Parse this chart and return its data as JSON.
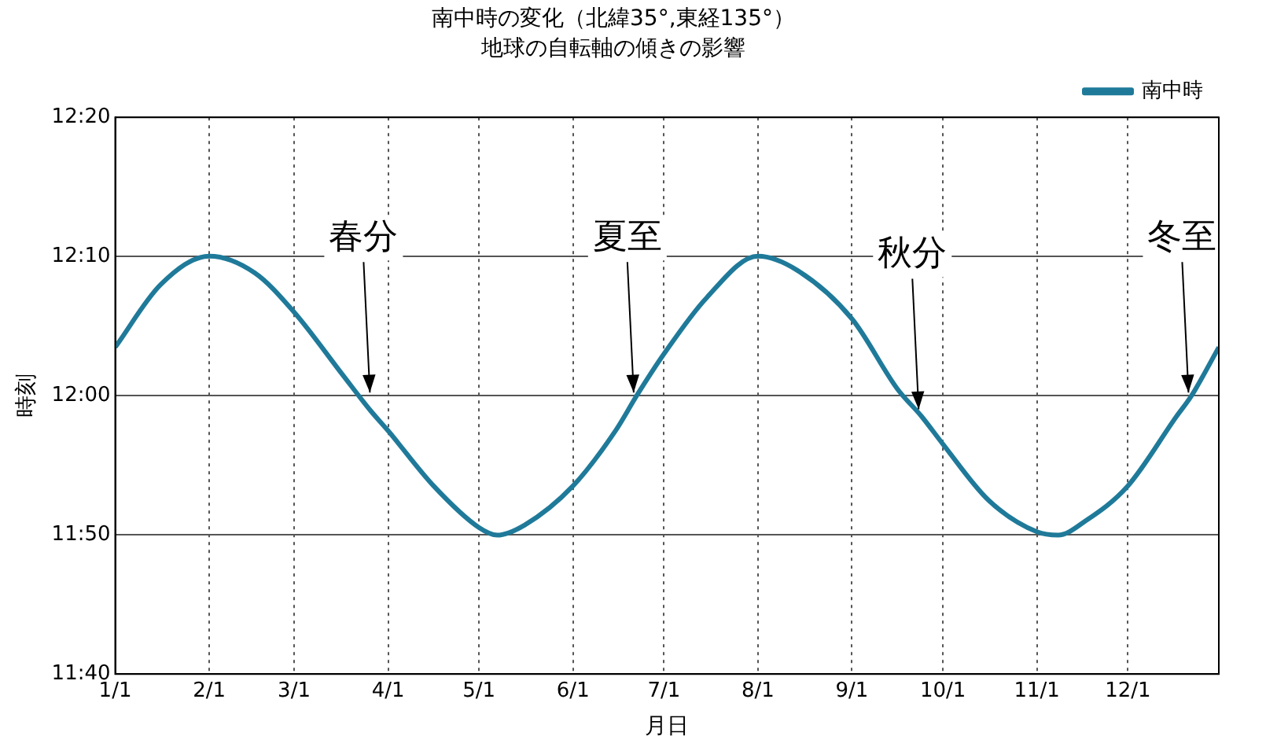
{
  "chart_data": {
    "type": "line",
    "title": "南中時の変化（北緯35°,東経135°）",
    "subtitle": "地球の自転軸の傾きの影響",
    "xlabel": "月日",
    "ylabel": "時刻",
    "x": [
      "--01-01",
      "--01-16",
      "--02-01",
      "--02-16",
      "--03-01",
      "--03-17",
      "--03-26",
      "--04-01",
      "--04-16",
      "--05-01",
      "--05-07",
      "--05-16",
      "--06-01",
      "--06-15",
      "--06-22",
      "--07-01",
      "--07-15",
      "--08-01",
      "--08-14",
      "--09-01",
      "--09-16",
      "--09-24",
      "--10-01",
      "--10-16",
      "--11-01",
      "--11-08",
      "--11-17",
      "--12-01",
      "--12-17",
      "--12-22",
      "--12-31"
    ],
    "series": [
      {
        "name": "南中時",
        "color": "#1f7a9a",
        "values": [
          12.058,
          12.133,
          12.167,
          12.147,
          12.1,
          12.025,
          11.983,
          11.958,
          11.892,
          11.842,
          11.833,
          11.845,
          11.892,
          11.958,
          12.0,
          12.05,
          12.117,
          12.167,
          12.15,
          12.092,
          12.008,
          11.975,
          11.942,
          11.875,
          11.837,
          11.833,
          11.85,
          11.892,
          11.975,
          12.0,
          12.058
        ]
      }
    ],
    "xlim": [
      "--01-01",
      "--12-31"
    ],
    "xticks": [
      {
        "value": "--01-01",
        "label": "1/1"
      },
      {
        "value": "--02-01",
        "label": "2/1"
      },
      {
        "value": "--03-01",
        "label": "3/1"
      },
      {
        "value": "--04-01",
        "label": "4/1"
      },
      {
        "value": "--05-01",
        "label": "5/1"
      },
      {
        "value": "--06-01",
        "label": "6/1"
      },
      {
        "value": "--07-01",
        "label": "7/1"
      },
      {
        "value": "--08-01",
        "label": "8/1"
      },
      {
        "value": "--09-01",
        "label": "9/1"
      },
      {
        "value": "--10-01",
        "label": "10/1"
      },
      {
        "value": "--11-01",
        "label": "11/1"
      },
      {
        "value": "--12-01",
        "label": "12/1"
      }
    ],
    "ylim": [
      11.6667,
      12.3333
    ],
    "yticks": [
      {
        "value": 11.6667,
        "label": "11:40"
      },
      {
        "value": 11.8333,
        "label": "11:50"
      },
      {
        "value": 12.0,
        "label": "12:00"
      },
      {
        "value": 12.1667,
        "label": "12:10"
      },
      {
        "value": 12.3333,
        "label": "12:20"
      }
    ],
    "annotations": [
      {
        "text": "春分",
        "x": "--03-26",
        "y": 12.0
      },
      {
        "text": "夏至",
        "x": "--06-21",
        "y": 12.0
      },
      {
        "text": "秋分",
        "x": "--09-23",
        "y": 11.98
      },
      {
        "text": "冬至",
        "x": "--12-21",
        "y": 12.0
      }
    ],
    "grid": true,
    "legend": "top right",
    "marker": "none",
    "line_style": "solid"
  }
}
